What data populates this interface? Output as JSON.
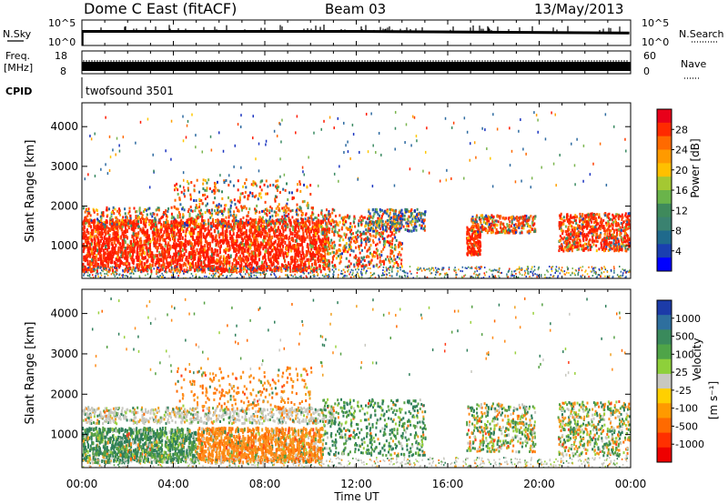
{
  "header": {
    "station": "Dome C East (fitACF)",
    "beam": "Beam 03",
    "date": "13/May/2013"
  },
  "status_panels": {
    "nsky_label": "N.Sky",
    "nsky_ticks": [
      "10^5",
      "10^0"
    ],
    "nsearch_label": "N.Search",
    "nsearch_ticks": [
      "10^5",
      "10^0"
    ],
    "freq_label_line1": "Freq.",
    "freq_label_line2": "[MHz]",
    "freq_ticks": [
      "18",
      "8"
    ],
    "nave_label": "Nave",
    "nave_ticks": [
      "60",
      "0"
    ],
    "cpid_label": "CPID",
    "cpid_value": "twofsound  3501"
  },
  "chart_data": [
    {
      "type": "heatmap",
      "panel": "power",
      "ylabel": "Slant Range [km]",
      "xlabel": "",
      "yticks": [
        "1000",
        "2000",
        "3000",
        "4000"
      ],
      "ylim": [
        180,
        4600
      ],
      "colorbar_label": "Power [dB]",
      "colorbar_ticks": [
        "28",
        "24",
        "20",
        "16",
        "12",
        "8",
        "4"
      ],
      "colorbar_colors": [
        "#e8001a",
        "#ff2a00",
        "#ff6a00",
        "#ff9a00",
        "#ffc000",
        "#a4c832",
        "#6ab44a",
        "#3f8a5c",
        "#3a8270",
        "#1f6a8c",
        "#1a3fb0",
        "#0000ff"
      ],
      "colors": [
        "#ff1a00",
        "#ff3d00",
        "#ff6a00",
        "#ffa000",
        "#ffc800",
        "#7ab54e",
        "#3a8a62",
        "#2d6aa0",
        "#1a34c0"
      ]
    },
    {
      "type": "heatmap",
      "panel": "velocity",
      "ylabel": "Slant Range [km]",
      "xlabel": "Time UT",
      "xticks": [
        "00:00",
        "04:00",
        "08:00",
        "12:00",
        "16:00",
        "20:00",
        "00:00"
      ],
      "xlim_hours": [
        0,
        24
      ],
      "yticks": [
        "1000",
        "2000",
        "3000",
        "4000"
      ],
      "ylim": [
        180,
        4600
      ],
      "colorbar_label_main": "Velocity",
      "colorbar_label_units": "[m s⁻¹]",
      "colorbar_ticks": [
        "1000",
        "500",
        "100",
        "25",
        "-25",
        "-100",
        "-500",
        "-1000"
      ],
      "colorbar_colors": [
        "#1c3ba8",
        "#2e6f9e",
        "#3a8a5c",
        "#4fa448",
        "#8ed03a",
        "#c8c8c0",
        "#ffd000",
        "#ff9a00",
        "#ff6a00",
        "#ff3000",
        "#ee0000"
      ],
      "colors": [
        "#2f7f5a",
        "#55a044",
        "#9ad13e",
        "#c8c8c0",
        "#f0a020",
        "#ff8c1a",
        "#ff6a00",
        "#ff3d1a"
      ]
    }
  ]
}
